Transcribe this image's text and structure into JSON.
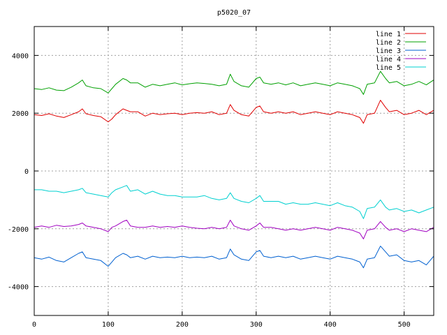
{
  "chart_data": {
    "type": "line",
    "title": "p5020_07",
    "xlabel": "",
    "ylabel": "",
    "xlim": [
      0,
      540
    ],
    "ylim": [
      -5000,
      5000
    ],
    "x_ticks": [
      0,
      100,
      200,
      300,
      400,
      500
    ],
    "y_ticks": [
      -4000,
      -2000,
      0,
      2000,
      4000
    ],
    "grid": true,
    "legend_position": "top-right",
    "x": [
      0,
      10,
      20,
      30,
      40,
      50,
      60,
      65,
      70,
      80,
      90,
      100,
      105,
      110,
      120,
      125,
      130,
      140,
      150,
      160,
      170,
      180,
      190,
      200,
      210,
      220,
      230,
      240,
      250,
      260,
      265,
      270,
      280,
      290,
      300,
      305,
      310,
      320,
      330,
      340,
      350,
      360,
      370,
      380,
      390,
      400,
      410,
      420,
      430,
      440,
      445,
      450,
      460,
      468,
      475,
      480,
      490,
      500,
      510,
      520,
      530,
      540
    ],
    "series": [
      {
        "name": "line 1",
        "color": "#e00000",
        "values": [
          1950,
          1920,
          1980,
          1900,
          1850,
          1950,
          2050,
          2150,
          1980,
          1920,
          1880,
          1700,
          1800,
          1950,
          2150,
          2100,
          2050,
          2050,
          1900,
          2000,
          1950,
          1980,
          2000,
          1950,
          2000,
          2020,
          2000,
          2050,
          1950,
          2000,
          2300,
          2100,
          1950,
          1900,
          2200,
          2250,
          2050,
          2000,
          2050,
          2000,
          2050,
          1950,
          2000,
          2050,
          2000,
          1950,
          2050,
          2000,
          1950,
          1850,
          1650,
          1950,
          2000,
          2450,
          2200,
          2050,
          2100,
          1950,
          2000,
          2100,
          1950,
          2100
        ]
      },
      {
        "name": "line 2",
        "color": "#00a000",
        "values": [
          2850,
          2820,
          2880,
          2800,
          2780,
          2900,
          3050,
          3150,
          2950,
          2880,
          2850,
          2700,
          2850,
          3000,
          3200,
          3150,
          3050,
          3050,
          2900,
          3000,
          2950,
          3000,
          3050,
          2980,
          3020,
          3050,
          3030,
          3000,
          2950,
          3000,
          3350,
          3100,
          2950,
          2900,
          3200,
          3250,
          3050,
          3000,
          3050,
          2980,
          3050,
          2950,
          3000,
          3050,
          3000,
          2950,
          3050,
          3000,
          2950,
          2850,
          2650,
          3000,
          3050,
          3450,
          3200,
          3050,
          3100,
          2950,
          3000,
          3100,
          2980,
          3150
        ]
      },
      {
        "name": "line 3",
        "color": "#0060d0",
        "values": [
          -3000,
          -3050,
          -2980,
          -3100,
          -3150,
          -3000,
          -2850,
          -2800,
          -3000,
          -3050,
          -3100,
          -3300,
          -3150,
          -3000,
          -2850,
          -2900,
          -3000,
          -2950,
          -3050,
          -2950,
          -3000,
          -2980,
          -3000,
          -2950,
          -3000,
          -2980,
          -3000,
          -2950,
          -3050,
          -3000,
          -2700,
          -2900,
          -3050,
          -3100,
          -2800,
          -2750,
          -2950,
          -3000,
          -2950,
          -3000,
          -2950,
          -3050,
          -3000,
          -2950,
          -3000,
          -3050,
          -2950,
          -3000,
          -3050,
          -3150,
          -3350,
          -3050,
          -3000,
          -2600,
          -2800,
          -2950,
          -2900,
          -3100,
          -3150,
          -3100,
          -3250,
          -2950
        ]
      },
      {
        "name": "line 4",
        "color": "#a000c0",
        "values": [
          -1950,
          -1900,
          -1950,
          -1880,
          -1920,
          -1900,
          -1850,
          -1800,
          -1900,
          -1950,
          -2000,
          -2100,
          -1950,
          -1900,
          -1750,
          -1700,
          -1900,
          -1950,
          -1950,
          -1900,
          -1950,
          -1920,
          -1950,
          -1900,
          -1950,
          -1980,
          -2000,
          -1950,
          -2000,
          -1950,
          -1700,
          -1900,
          -2000,
          -2050,
          -1900,
          -1800,
          -1950,
          -1950,
          -2000,
          -2050,
          -2000,
          -2050,
          -2000,
          -1950,
          -2000,
          -2050,
          -1950,
          -2000,
          -2050,
          -2150,
          -2350,
          -2050,
          -2000,
          -1750,
          -1950,
          -2050,
          -2000,
          -2100,
          -2000,
          -2050,
          -2100,
          -1950
        ]
      },
      {
        "name": "line 5",
        "color": "#00d0d0",
        "values": [
          -650,
          -650,
          -700,
          -700,
          -750,
          -700,
          -650,
          -600,
          -750,
          -800,
          -850,
          -900,
          -750,
          -650,
          -550,
          -500,
          -700,
          -650,
          -800,
          -700,
          -800,
          -850,
          -850,
          -900,
          -900,
          -900,
          -850,
          -950,
          -1000,
          -950,
          -750,
          -950,
          -1050,
          -1100,
          -950,
          -850,
          -1050,
          -1050,
          -1050,
          -1150,
          -1100,
          -1150,
          -1150,
          -1100,
          -1150,
          -1200,
          -1100,
          -1200,
          -1250,
          -1400,
          -1650,
          -1300,
          -1250,
          -1000,
          -1250,
          -1350,
          -1300,
          -1400,
          -1350,
          -1450,
          -1350,
          -1250
        ]
      }
    ]
  }
}
